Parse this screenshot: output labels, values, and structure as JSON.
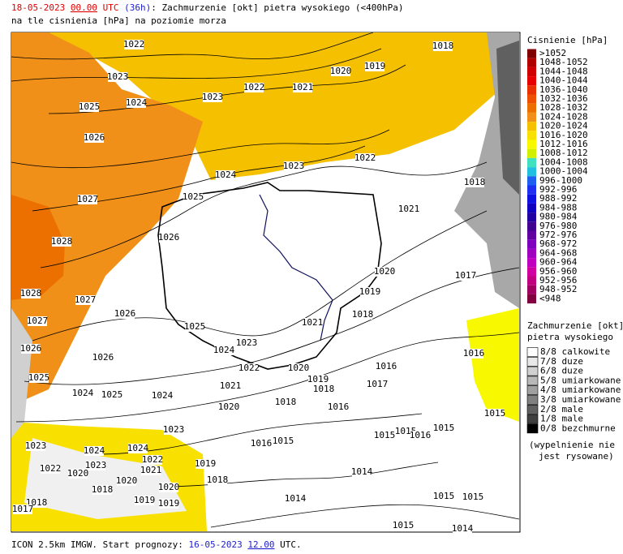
{
  "header": {
    "date": "18-05-2023",
    "hour": "00.00",
    "utc": "UTC",
    "lead": "(36h)",
    "title": ": Zachmurzenie [okt] pietra wysokiego (<400hPa)",
    "subtitle": "na tle cisnienia [hPa] na poziomie morza"
  },
  "legend_pressure": {
    "title": "Cisnienie [hPa]",
    "items": [
      {
        "label": ">1052",
        "color": "#800000"
      },
      {
        "label": "1048-1052",
        "color": "#b00000"
      },
      {
        "label": "1044-1048",
        "color": "#d00000"
      },
      {
        "label": "1040-1044",
        "color": "#e80000"
      },
      {
        "label": "1036-1040",
        "color": "#e83000"
      },
      {
        "label": "1032-1036",
        "color": "#ec5000"
      },
      {
        "label": "1028-1032",
        "color": "#ec7000"
      },
      {
        "label": "1024-1028",
        "color": "#f09018"
      },
      {
        "label": "1020-1024",
        "color": "#f4c000"
      },
      {
        "label": "1016-1020",
        "color": "#f8e000"
      },
      {
        "label": "1012-1016",
        "color": "#f8f800"
      },
      {
        "label": "1008-1012",
        "color": "#d0f000"
      },
      {
        "label": "1004-1008",
        "color": "#40e0c0"
      },
      {
        "label": "1000-1004",
        "color": "#20c0e0"
      },
      {
        "label": "996-1000",
        "color": "#2060f0"
      },
      {
        "label": "992-996",
        "color": "#2030f0"
      },
      {
        "label": "988-992",
        "color": "#1010e0"
      },
      {
        "label": "984-988",
        "color": "#1000c0"
      },
      {
        "label": "980-984",
        "color": "#2000a0"
      },
      {
        "label": "976-980",
        "color": "#400090"
      },
      {
        "label": "972-976",
        "color": "#6000a0"
      },
      {
        "label": "968-972",
        "color": "#8000c0"
      },
      {
        "label": "964-968",
        "color": "#a000c0"
      },
      {
        "label": "960-964",
        "color": "#c000c0"
      },
      {
        "label": "956-960",
        "color": "#d000a0"
      },
      {
        "label": "952-956",
        "color": "#c00080"
      },
      {
        "label": "948-952",
        "color": "#a00060"
      },
      {
        "label": "<948",
        "color": "#800040"
      }
    ]
  },
  "legend_cloud": {
    "title": [
      "Zachmurzenie [okt]",
      "pietra wysokiego"
    ],
    "items": [
      {
        "label": "8/8 calkowite",
        "color": "#ffffff"
      },
      {
        "label": "7/8 duze",
        "color": "#e8e8e8"
      },
      {
        "label": "6/8 duze",
        "color": "#d0d0d0"
      },
      {
        "label": "5/8 umiarkowane",
        "color": "#b8b8b8"
      },
      {
        "label": "4/8 umiarkowane",
        "color": "#a0a0a0"
      },
      {
        "label": "3/8 umiarkowane",
        "color": "#808080"
      },
      {
        "label": "2/8 male",
        "color": "#606060"
      },
      {
        "label": "1/8 male",
        "color": "#404040"
      },
      {
        "label": "0/8 bezchmurne",
        "color": "#000000"
      }
    ],
    "note": [
      "(wypelnienie nie",
      "jest rysowane)"
    ]
  },
  "map": {
    "isobar_labels": [
      "1022",
      "1023",
      "1025",
      "1024",
      "1023",
      "1022",
      "1021",
      "1020",
      "1019",
      "1018",
      "1026",
      "1022",
      "1023",
      "1024",
      "1025",
      "1027",
      "1021",
      "1018",
      "1028",
      "1026",
      "1020",
      "1017",
      "1019",
      "1028",
      "1027",
      "1026",
      "1018",
      "1021",
      "1027",
      "1025",
      "1023",
      "1024",
      "1026",
      "1026",
      "1016",
      "1022",
      "1020",
      "1016",
      "1025",
      "1019",
      "1018",
      "1017",
      "1021",
      "1024",
      "1025",
      "1024",
      "1018",
      "1016",
      "1020",
      "1015",
      "1023",
      "1015",
      "1015",
      "1016",
      "1015",
      "1016",
      "1015",
      "1023",
      "1024",
      "1024",
      "1022",
      "1019",
      "1023",
      "1021",
      "1022",
      "1020",
      "1020",
      "1018",
      "1014",
      "1018",
      "1020",
      "1019",
      "1019",
      "1018",
      "1014",
      "1015",
      "1015",
      "1017",
      "1015",
      "1014"
    ]
  },
  "footer": {
    "prefix": "ICON 2.5km IMGW. Start prognozy: ",
    "date": "16-05-2023",
    "hour": "12.00",
    "suffix": " UTC."
  }
}
